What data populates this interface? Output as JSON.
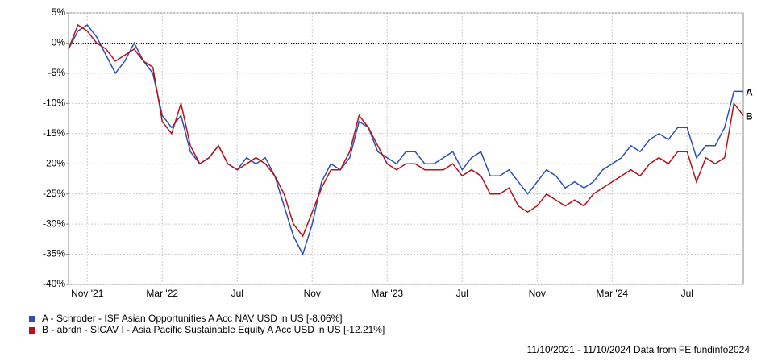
{
  "chart_data": {
    "type": "line",
    "categories": [
      null,
      null,
      "Nov '21",
      null,
      null,
      null,
      null,
      null,
      null,
      null,
      "Mar '22",
      null,
      null,
      null,
      null,
      null,
      null,
      null,
      "Jul",
      null,
      null,
      null,
      null,
      null,
      null,
      null,
      "Nov",
      null,
      null,
      null,
      null,
      null,
      null,
      null,
      "Mar '23",
      null,
      null,
      null,
      null,
      null,
      null,
      null,
      "Jul",
      null,
      null,
      null,
      null,
      null,
      null,
      null,
      "Nov",
      null,
      null,
      null,
      null,
      null,
      null,
      null,
      "Mar '24",
      null,
      null,
      null,
      null,
      null,
      null,
      null,
      "Jul",
      null,
      null,
      null,
      null,
      null,
      null
    ],
    "series": [
      {
        "name": "A - Schroder - ISF Asian Opportunities A Acc NAV USD in US [-8.06%]",
        "tag": "A",
        "color": "#2b4fb8",
        "values": [
          -1,
          2,
          3,
          1,
          -2,
          -5,
          -3,
          0,
          -3,
          -5,
          -12,
          -14,
          -12,
          -18,
          -20,
          -19,
          -17,
          -20,
          -21,
          -19,
          -20,
          -19,
          -22,
          -27,
          -32,
          -35,
          -30,
          -23,
          -20,
          -21,
          -19,
          -13,
          -14,
          -18,
          -19,
          -20,
          -18,
          -18,
          -20,
          -20,
          -19,
          -18,
          -21,
          -19,
          -18,
          -22,
          -22,
          -21,
          -23,
          -25,
          -23,
          -21,
          -22,
          -24,
          -23,
          -24,
          -23,
          -21,
          -20,
          -19,
          -17,
          -18,
          -16,
          -15,
          -16,
          -14,
          -14,
          -19,
          -17,
          -17,
          -14,
          -8,
          -8
        ]
      },
      {
        "name": "B - abrdn - SICAV I - Asia Pacific Sustainable Equity A Acc USD in US [-12.21%]",
        "tag": "B",
        "color": "#b5121b",
        "values": [
          -1,
          3,
          2,
          0,
          -1,
          -3,
          -2,
          -1,
          -3,
          -4,
          -13,
          -15,
          -10,
          -17,
          -20,
          -19,
          -17,
          -20,
          -21,
          -20,
          -19,
          -20,
          -22,
          -25,
          -30,
          -32,
          -28,
          -24,
          -21,
          -21,
          -18,
          -12,
          -14,
          -17,
          -20,
          -21,
          -20,
          -20,
          -21,
          -21,
          -21,
          -20,
          -22,
          -21,
          -22,
          -25,
          -25,
          -24,
          -27,
          -28,
          -27,
          -25,
          -26,
          -27,
          -26,
          -27,
          -25,
          -24,
          -23,
          -22,
          -21,
          -22,
          -20,
          -19,
          -20,
          -18,
          -18,
          -23,
          -19,
          -20,
          -19,
          -10,
          -12
        ]
      }
    ],
    "ylim": [
      -40,
      5
    ],
    "yticks": [
      {
        "value": -40,
        "label": "-40%"
      },
      {
        "value": -35,
        "label": "-35%"
      },
      {
        "value": -30,
        "label": "-30%"
      },
      {
        "value": -25,
        "label": "-25%"
      },
      {
        "value": -20,
        "label": "-20%"
      },
      {
        "value": -15,
        "label": "-15%"
      },
      {
        "value": -10,
        "label": "-10%"
      },
      {
        "value": -5,
        "label": "-5%"
      },
      {
        "value": 0,
        "label": "0%"
      },
      {
        "value": 5,
        "label": "5%"
      }
    ],
    "grid": true,
    "zero_line": true,
    "footer": "11/10/2021 - 11/10/2024 Data from FE fundinfo2024"
  }
}
